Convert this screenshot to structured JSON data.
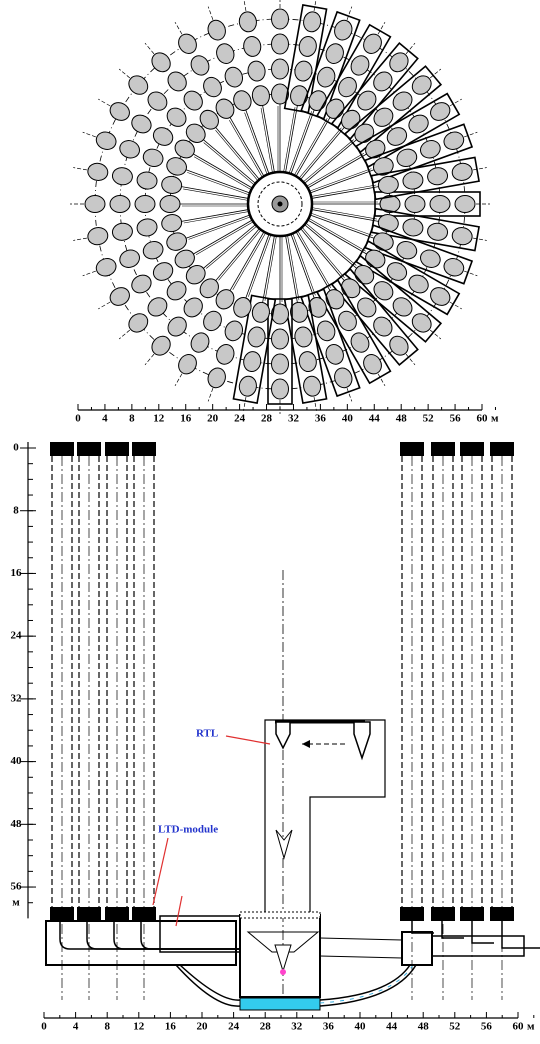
{
  "top_scale": {
    "ticks": [
      0,
      4,
      8,
      12,
      16,
      20,
      24,
      28,
      32,
      36,
      40,
      44,
      48,
      52,
      56,
      60
    ],
    "unit": "м"
  },
  "side_scale": {
    "ticks": [
      0,
      8,
      16,
      24,
      32,
      40,
      48,
      56
    ],
    "unit": "м"
  },
  "bottom_scale": {
    "ticks": [
      0,
      4,
      8,
      12,
      16,
      20,
      24,
      28,
      32,
      36,
      40,
      44,
      48,
      52,
      56,
      60
    ],
    "unit": "м"
  },
  "labels": {
    "rtl": "RTL",
    "ltd_module": "LTD-module"
  }
}
